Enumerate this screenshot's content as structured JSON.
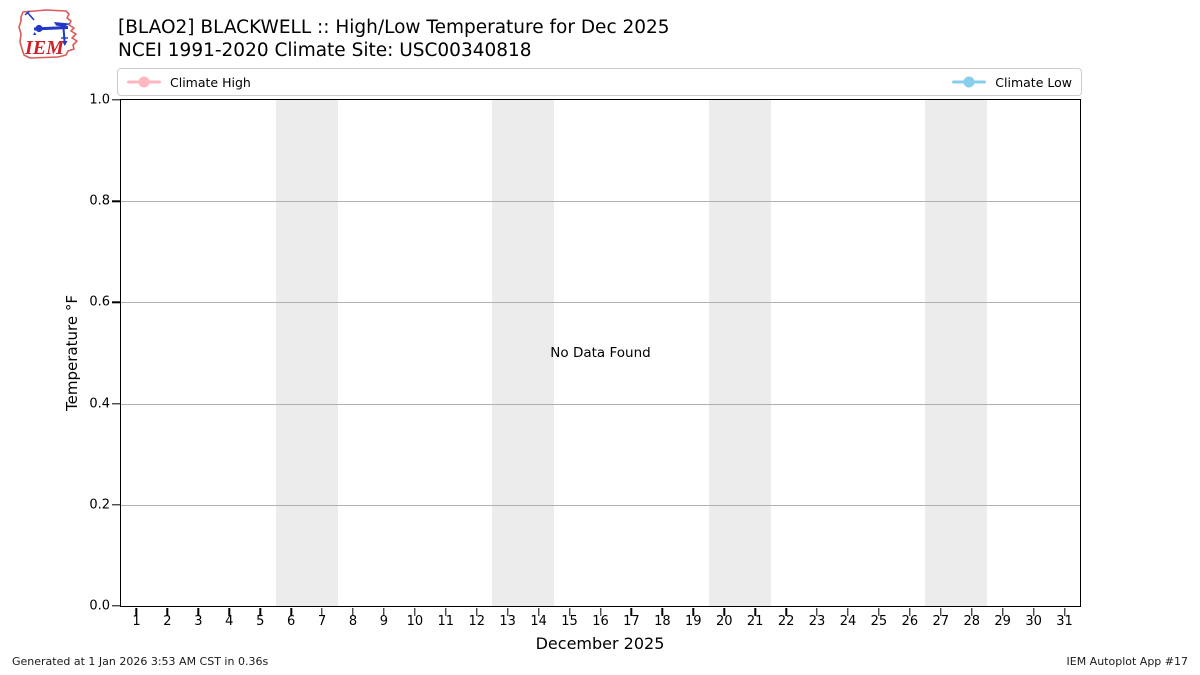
{
  "header": {
    "logo_text": "IEM",
    "title_line1": "[BLAO2] BLACKWELL :: High/Low Temperature for Dec 2025",
    "title_line2": "NCEI 1991-2020 Climate Site: USC00340818"
  },
  "legend": {
    "items": [
      {
        "label": "Climate High",
        "color": "#ffb6c1"
      },
      {
        "label": "Climate Low",
        "color": "#87ceeb"
      }
    ]
  },
  "axes": {
    "ylabel": "Temperature °F",
    "xlabel": "December 2025",
    "yticks": [
      "1.0",
      "0.8",
      "0.6",
      "0.4",
      "0.2",
      "0.0"
    ],
    "xticks": [
      "1",
      "2",
      "3",
      "4",
      "5",
      "6",
      "7",
      "8",
      "9",
      "10",
      "11",
      "12",
      "13",
      "14",
      "15",
      "16",
      "17",
      "18",
      "19",
      "20",
      "21",
      "22",
      "23",
      "24",
      "25",
      "26",
      "27",
      "28",
      "29",
      "30",
      "31"
    ],
    "weekend_band_color": "#ececec",
    "grid_color": "#b0b0b0"
  },
  "plot": {
    "no_data_text": "No Data Found"
  },
  "chart_data": {
    "type": "line",
    "title": "[BLAO2] BLACKWELL :: High/Low Temperature for Dec 2025",
    "subtitle": "NCEI 1991-2020 Climate Site: USC00340818",
    "xlabel": "December 2025",
    "ylabel": "Temperature °F",
    "xlim": [
      0.5,
      31.5
    ],
    "ylim": [
      0.0,
      1.0
    ],
    "x": [
      1,
      2,
      3,
      4,
      5,
      6,
      7,
      8,
      9,
      10,
      11,
      12,
      13,
      14,
      15,
      16,
      17,
      18,
      19,
      20,
      21,
      22,
      23,
      24,
      25,
      26,
      27,
      28,
      29,
      30,
      31
    ],
    "series": [
      {
        "name": "Climate High",
        "color": "#ffb6c1",
        "values": []
      },
      {
        "name": "Climate Low",
        "color": "#87ceeb",
        "values": []
      }
    ],
    "annotations": [
      "No Data Found"
    ],
    "weekend_shading_days": [
      [
        6,
        7
      ],
      [
        13,
        14
      ],
      [
        20,
        21
      ],
      [
        27,
        28
      ]
    ],
    "grid": "horizontal-y",
    "legend_position": "top strip spanning plot width; Climate High left, Climate Low right"
  },
  "footer": {
    "left": "Generated at 1 Jan 2026 3:53 AM CST in 0.36s",
    "right": "IEM Autoplot App #17"
  }
}
